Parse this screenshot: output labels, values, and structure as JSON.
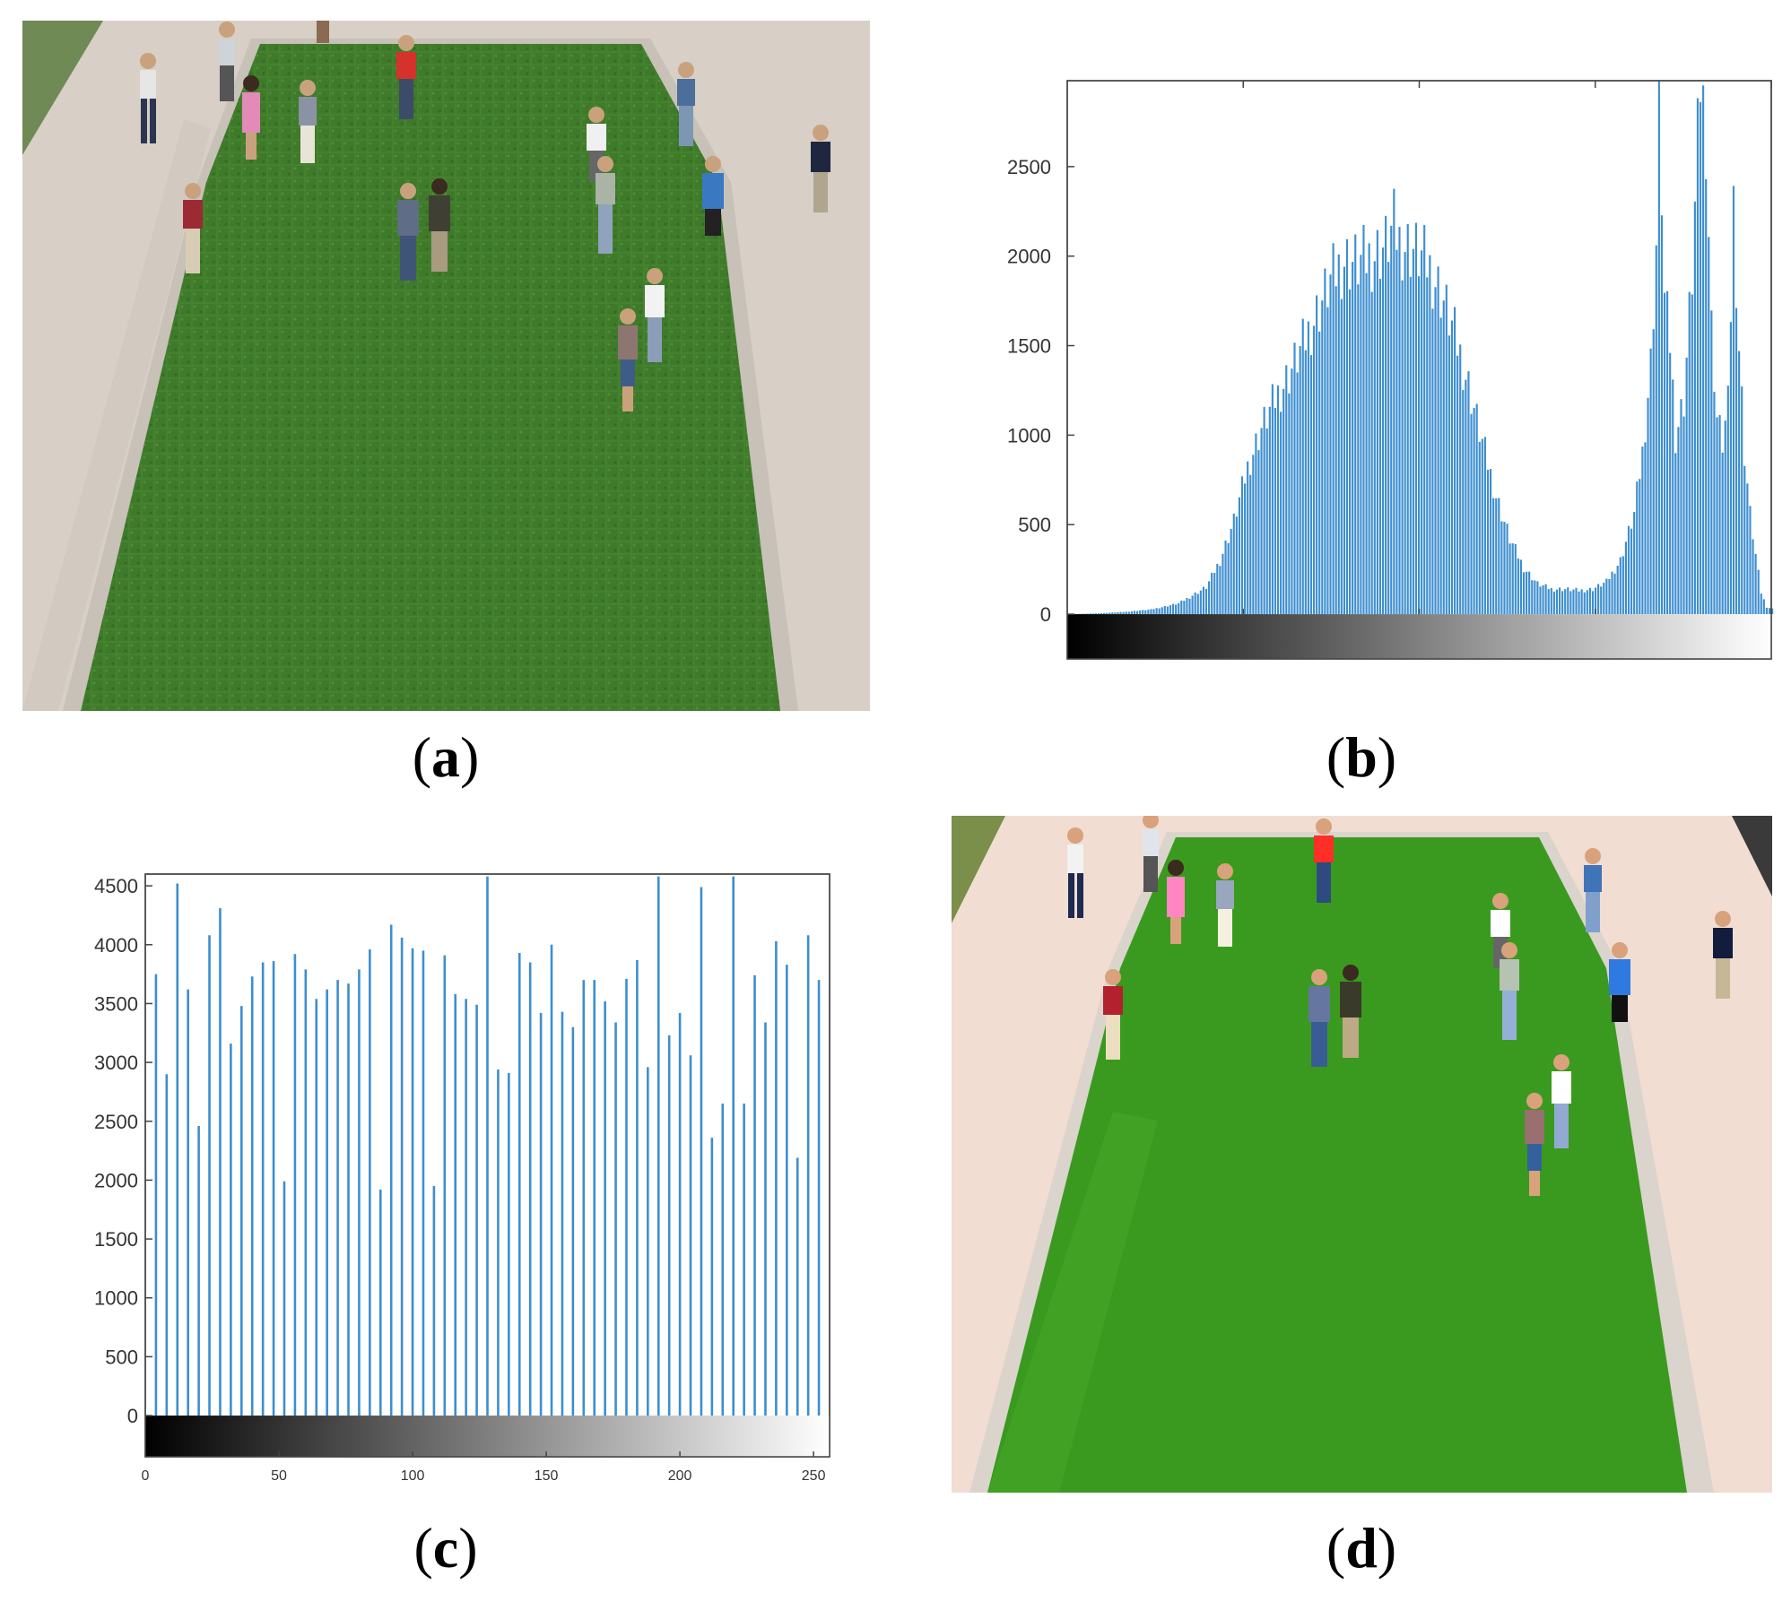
{
  "panels": {
    "a": {
      "label": "a"
    },
    "b": {
      "label": "b"
    },
    "c": {
      "label": "c"
    },
    "d": {
      "label": "d"
    }
  },
  "colors": {
    "bar": "#3d8ed0",
    "grass": "#3f7a2a",
    "grass_d": "#3a9a1f",
    "path": "#d8cfc6",
    "path_d": "#f1ddd2",
    "curb": "#b9b5ad"
  },
  "chart_data": [
    {
      "panel": "b",
      "type": "bar",
      "title": "",
      "xlabel": "",
      "ylabel": "",
      "x_range": [
        0,
        255
      ],
      "ylim": [
        -250,
        2980
      ],
      "y_ticks": [
        "0",
        "500",
        "1000",
        "1500",
        "2000",
        "2500"
      ],
      "colorbar": "black-to-white gradient",
      "profile_points": [
        [
          0,
          0
        ],
        [
          10,
          4
        ],
        [
          20,
          12
        ],
        [
          30,
          26
        ],
        [
          40,
          60
        ],
        [
          50,
          150
        ],
        [
          55,
          300
        ],
        [
          60,
          520
        ],
        [
          65,
          820
        ],
        [
          70,
          1040
        ],
        [
          75,
          1200
        ],
        [
          80,
          1340
        ],
        [
          85,
          1500
        ],
        [
          90,
          1680
        ],
        [
          95,
          1860
        ],
        [
          100,
          1980
        ],
        [
          105,
          1960
        ],
        [
          110,
          2000
        ],
        [
          115,
          2060
        ],
        [
          118,
          2160
        ],
        [
          120,
          2080
        ],
        [
          125,
          2040
        ],
        [
          130,
          1960
        ],
        [
          135,
          1800
        ],
        [
          140,
          1560
        ],
        [
          145,
          1280
        ],
        [
          150,
          960
        ],
        [
          155,
          660
        ],
        [
          160,
          420
        ],
        [
          165,
          260
        ],
        [
          170,
          170
        ],
        [
          175,
          140
        ],
        [
          180,
          140
        ],
        [
          185,
          132
        ],
        [
          190,
          140
        ],
        [
          195,
          180
        ],
        [
          200,
          300
        ],
        [
          205,
          560
        ],
        [
          208,
          900
        ],
        [
          211,
          1400
        ],
        [
          213,
          2060
        ],
        [
          214,
          2980
        ],
        [
          216,
          1760
        ],
        [
          218,
          1520
        ],
        [
          220,
          1000
        ],
        [
          223,
          1200
        ],
        [
          226,
          1900
        ],
        [
          228,
          2620
        ],
        [
          229,
          2980
        ],
        [
          231,
          2700
        ],
        [
          233,
          1600
        ],
        [
          235,
          1100
        ],
        [
          237,
          960
        ],
        [
          239,
          1160
        ],
        [
          240,
          1700
        ],
        [
          241,
          2300
        ],
        [
          243,
          1500
        ],
        [
          245,
          900
        ],
        [
          247,
          560
        ],
        [
          249,
          330
        ],
        [
          251,
          120
        ],
        [
          253,
          40
        ],
        [
          255,
          30
        ]
      ]
    },
    {
      "panel": "c",
      "type": "bar",
      "title": "",
      "xlabel": "",
      "ylabel": "",
      "x_range": [
        0,
        256
      ],
      "ylim": [
        -350,
        4600
      ],
      "x_ticks": [
        "0",
        "50",
        "100",
        "150",
        "200",
        "250"
      ],
      "y_ticks": [
        "0",
        "500",
        "1000",
        "1500",
        "2000",
        "2500",
        "3000",
        "3500",
        "4000",
        "4500"
      ],
      "colorbar": "black-to-white gradient",
      "x": [
        4,
        8,
        12,
        16,
        20,
        24,
        28,
        32,
        36,
        40,
        44,
        48,
        52,
        56,
        60,
        64,
        68,
        72,
        76,
        80,
        84,
        88,
        92,
        96,
        100,
        104,
        108,
        112,
        116,
        120,
        124,
        128,
        132,
        136,
        140,
        144,
        148,
        152,
        156,
        160,
        164,
        168,
        172,
        176,
        180,
        184,
        188,
        192,
        196,
        200,
        204,
        208,
        212,
        216,
        220,
        224,
        228,
        232,
        236,
        240,
        244,
        248,
        252
      ],
      "values": [
        3750,
        2900,
        4520,
        3620,
        2460,
        4080,
        4310,
        3160,
        3480,
        3730,
        3850,
        3860,
        1990,
        3920,
        3790,
        3540,
        3620,
        3700,
        3670,
        3790,
        3960,
        1920,
        4170,
        4060,
        3970,
        3950,
        1950,
        3910,
        3580,
        3540,
        3490,
        4580,
        2940,
        2910,
        3930,
        3850,
        3420,
        4000,
        3430,
        3300,
        3700,
        3700,
        3520,
        3340,
        3710,
        3870,
        2960,
        4580,
        3230,
        3420,
        3060,
        4490,
        2360,
        2650,
        4580,
        2650,
        3740,
        3340,
        4030,
        3830,
        2190,
        4080,
        3700
      ]
    }
  ]
}
